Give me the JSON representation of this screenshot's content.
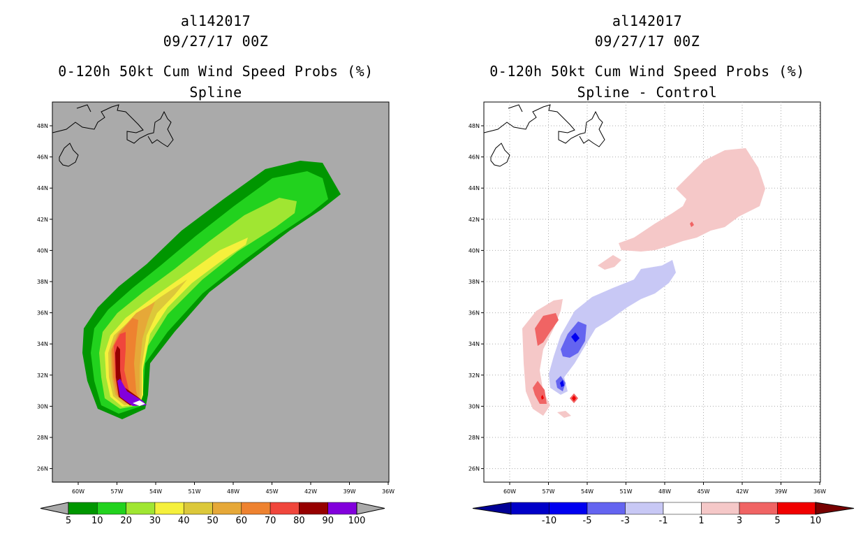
{
  "left": {
    "storm_id": "al142017",
    "datetime": "09/27/17 00Z",
    "title": "0-120h 50kt Cum Wind Speed Probs (%)",
    "subtitle": "Spline",
    "colorbar": {
      "labels": [
        "5",
        "10",
        "20",
        "30",
        "40",
        "50",
        "60",
        "70",
        "80",
        "90",
        "100"
      ],
      "colors": [
        "#009600",
        "#22d21e",
        "#a0e632",
        "#f5f03c",
        "#dcc83a",
        "#e6a838",
        "#ee8230",
        "#f0463c",
        "#960000",
        "#8200dc"
      ]
    }
  },
  "right": {
    "storm_id": "al142017",
    "datetime": "09/27/17 00Z",
    "title": "0-120h 50kt Cum Wind Speed Probs (%)",
    "subtitle": "Spline - Control",
    "colorbar": {
      "labels": [
        "-10",
        "-5",
        "-3",
        "-1",
        "1",
        "3",
        "5",
        "10"
      ],
      "colors": [
        "#0000c8",
        "#0000f0",
        "#6464f0",
        "#c8c8f5",
        "#ffffff",
        "#f5c8c8",
        "#f06464",
        "#f00000"
      ],
      "end_colors": [
        "#000096",
        "#780000"
      ]
    }
  },
  "axes": {
    "lon_labels": [
      "60W",
      "57W",
      "54W",
      "51W",
      "48W",
      "45W",
      "42W",
      "39W",
      "36W"
    ],
    "lat_labels": [
      "48N",
      "46N",
      "44N",
      "42N",
      "40N",
      "38N",
      "36N",
      "34N",
      "32N",
      "30N",
      "28N",
      "26N"
    ]
  }
}
